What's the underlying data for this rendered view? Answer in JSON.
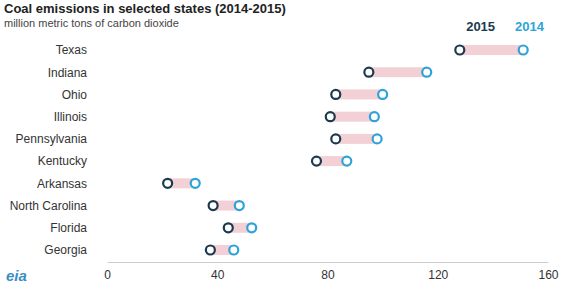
{
  "chart_data": {
    "type": "dumbbell",
    "title": "Coal emissions in selected states (2014-2015)",
    "subtitle": "million metric tons of carbon dioxide",
    "orientation": "horizontal",
    "categories": [
      "Texas",
      "Indiana",
      "Ohio",
      "Illinois",
      "Pennsylvania",
      "Kentucky",
      "Arkansas",
      "North Carolina",
      "Florida",
      "Georgia"
    ],
    "series": [
      {
        "name": "2015",
        "color": "#1b3a4f",
        "values": [
          128,
          95,
          83,
          81,
          83,
          76,
          22,
          38.5,
          44,
          37.5
        ]
      },
      {
        "name": "2014",
        "color": "#2ea3d8",
        "values": [
          151,
          116,
          100,
          97,
          98,
          87,
          32,
          48,
          52.5,
          46
        ]
      }
    ],
    "xlim": [
      0,
      160
    ],
    "xticks": [
      0,
      40,
      80,
      120,
      160
    ],
    "grid": false,
    "legend": "top-right",
    "annotations": [
      "eia"
    ]
  }
}
